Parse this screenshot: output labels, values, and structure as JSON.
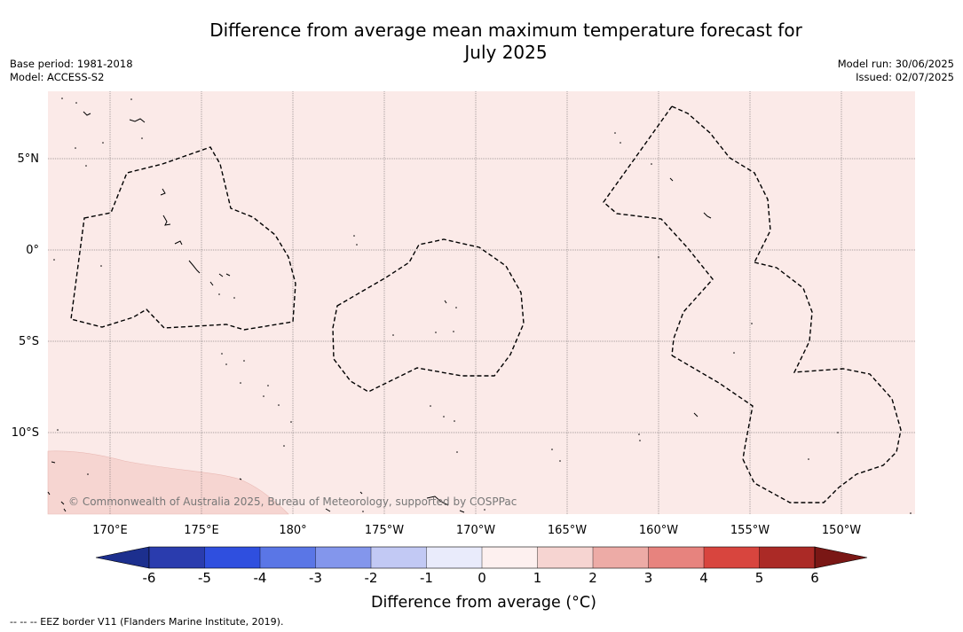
{
  "title": {
    "line1": "Difference from average mean maximum temperature forecast for",
    "line2": "July 2025"
  },
  "meta_left": {
    "base_period": "Base period: 1981-2018",
    "model": "Model: ACCESS-S2"
  },
  "meta_right": {
    "model_run": "Model run: 30/06/2025",
    "issued": "Issued: 02/07/2025"
  },
  "map": {
    "lat_labels": [
      "5°N",
      "0°",
      "5°S",
      "10°S"
    ],
    "lon_labels": [
      "170°E",
      "175°E",
      "180°",
      "175°W",
      "170°W",
      "165°W",
      "160°W",
      "155°W",
      "150°W"
    ],
    "copyright": "© Commonwealth of Australia 2025, Bureau of Meteorology, supported by COSPPac",
    "fill_color_main": "#fbeae8",
    "fill_color_warm": "#f6d5d1"
  },
  "colorbar": {
    "label": "Difference from average (°C)",
    "ticks": [
      "-6",
      "-5",
      "-4",
      "-3",
      "-2",
      "-1",
      "0",
      "1",
      "2",
      "3",
      "4",
      "5",
      "6"
    ],
    "colors": [
      "#1c2f8e",
      "#2a3cae",
      "#2f4fdf",
      "#5a76e6",
      "#8396ec",
      "#c2c9f4",
      "#e9ebfb",
      "#fdf0ef",
      "#f6d4d1",
      "#edaba6",
      "#e7837e",
      "#d8453e",
      "#ab2a26",
      "#7a1715"
    ]
  },
  "footer": "--  --  -- EEZ border V11 (Flanders Marine Institute, 2019)."
}
